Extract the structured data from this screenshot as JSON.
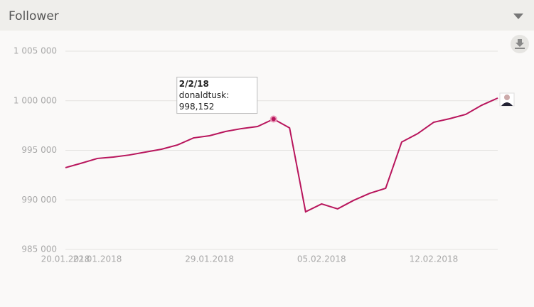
{
  "header": {
    "title": "Follower"
  },
  "chart_data": {
    "type": "line",
    "categories": [
      "20.01.2018",
      null,
      "22.01.2018",
      null,
      null,
      null,
      null,
      null,
      null,
      "29.01.2018",
      null,
      null,
      null,
      null,
      null,
      null,
      "05.02.2018",
      null,
      null,
      null,
      null,
      null,
      null,
      "12.02.2018",
      null,
      null,
      null,
      null
    ],
    "series": [
      {
        "color": "#b8155c",
        "values": [
          993250,
          993700,
          994180,
          994320,
          994530,
          994820,
          995110,
          995540,
          996250,
          996470,
          996900,
          997190,
          997400,
          998152,
          997260,
          988800,
          989590,
          989090,
          989950,
          990660,
          991170,
          995830,
          996680,
          997830,
          998190,
          998620,
          999550,
          1000270
        ]
      }
    ],
    "ylim": [
      985000,
      1005000
    ],
    "yticks": [
      {
        "value": 985000,
        "label": "985 000"
      },
      {
        "value": 990000,
        "label": "990 000"
      },
      {
        "value": 995000,
        "label": "995 000"
      },
      {
        "value": 1000000,
        "label": "1 000 000"
      },
      {
        "value": 1005000,
        "label": "1 005 000"
      }
    ],
    "grid": true,
    "highlight": 13,
    "tooltip": {
      "title": "2/2/18",
      "label": "donaldtusk:",
      "value_label": "998,152"
    }
  }
}
